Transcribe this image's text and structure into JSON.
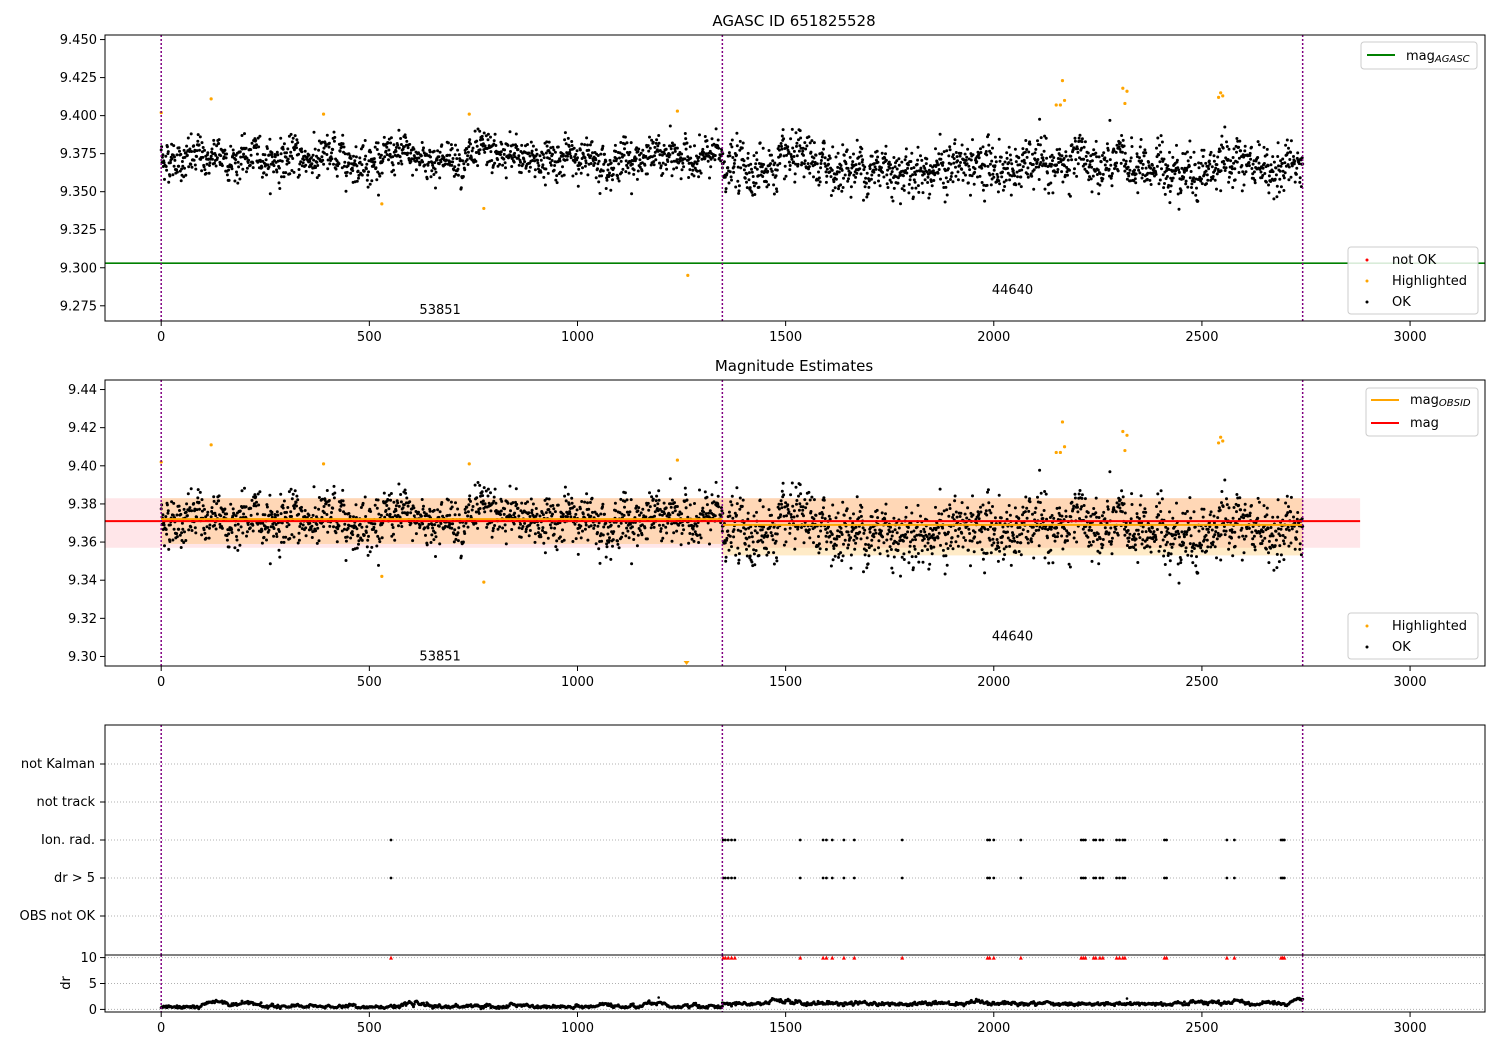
{
  "chart_data": [
    {
      "id": "agasc",
      "type": "scatter",
      "title": "AGASC ID 651825528",
      "xlim": [
        -135,
        3180
      ],
      "ylim": [
        9.265,
        9.453
      ],
      "xticks": [
        0,
        500,
        1000,
        1500,
        2000,
        2500,
        3000
      ],
      "yticks": [
        9.275,
        9.3,
        9.325,
        9.35,
        9.375,
        9.4,
        9.425,
        9.45
      ],
      "ytick_labels": [
        "9.275",
        "9.300",
        "9.325",
        "9.350",
        "9.375",
        "9.400",
        "9.425",
        "9.450"
      ],
      "obs_boundaries": [
        0,
        1348,
        2742
      ],
      "obs_labels": [
        {
          "text": "53851",
          "x": 670,
          "y": 9.273
        },
        {
          "text": "44640",
          "x": 2045,
          "y": 9.286
        }
      ],
      "series": [
        {
          "name": "not OK",
          "color": "#ff0000",
          "values": []
        },
        {
          "name": "Highlighted",
          "color": "#ffa500",
          "x": [
            0,
            120,
            390,
            530,
            740,
            775,
            1240,
            1265,
            2150,
            2160,
            2165,
            2170,
            2310,
            2315,
            2320,
            2540,
            2545,
            2550
          ],
          "y": [
            9.402,
            9.411,
            9.401,
            9.342,
            9.401,
            9.339,
            9.403,
            9.295,
            9.407,
            9.407,
            9.423,
            9.41,
            9.418,
            9.408,
            9.416,
            9.412,
            9.415,
            9.413
          ]
        },
        {
          "name": "OK",
          "color": "#000000",
          "segments": [
            {
              "x0": 0,
              "x1": 1348,
              "mean": 9.372,
              "std": 0.011
            },
            {
              "x0": 1348,
              "x1": 2742,
              "mean": 9.366,
              "std": 0.014
            }
          ]
        }
      ],
      "lines": [
        {
          "name": "mag_AGASC",
          "legend_main": "mag",
          "legend_sub": "AGASC",
          "y": 9.303,
          "color": "#008000"
        }
      ]
    },
    {
      "id": "mag-estimates",
      "type": "scatter",
      "title": "Magnitude Estimates",
      "xlim": [
        -135,
        3180
      ],
      "ylim": [
        9.295,
        9.445
      ],
      "xticks": [
        0,
        500,
        1000,
        1500,
        2000,
        2500,
        3000
      ],
      "yticks": [
        9.3,
        9.32,
        9.34,
        9.36,
        9.38,
        9.4,
        9.42,
        9.44
      ],
      "ytick_labels": [
        "9.30",
        "9.32",
        "9.34",
        "9.36",
        "9.38",
        "9.40",
        "9.42",
        "9.44"
      ],
      "obs_boundaries": [
        0,
        1348,
        2742
      ],
      "obs_labels": [
        {
          "text": "53851",
          "x": 670,
          "y": 9.3005
        },
        {
          "text": "44640",
          "x": 2045,
          "y": 9.311
        }
      ],
      "series": [
        {
          "name": "Highlighted",
          "color": "#ffa500",
          "x": [
            0,
            120,
            390,
            530,
            740,
            775,
            1240,
            2150,
            2160,
            2165,
            2170,
            2310,
            2315,
            2320,
            2540,
            2545,
            2550
          ],
          "y": [
            9.402,
            9.411,
            9.401,
            9.342,
            9.401,
            9.339,
            9.403,
            9.407,
            9.407,
            9.423,
            9.41,
            9.418,
            9.408,
            9.416,
            9.412,
            9.415,
            9.413
          ]
        },
        {
          "name": "OK",
          "color": "#000000",
          "segments": [
            {
              "x0": 0,
              "x1": 1348,
              "mean": 9.372,
              "std": 0.011
            },
            {
              "x0": 1348,
              "x1": 2742,
              "mean": 9.366,
              "std": 0.014
            }
          ]
        }
      ],
      "bands": [
        {
          "name": "mag band",
          "x0": -135,
          "x1": 2880,
          "y0": 9.357,
          "y1": 9.383,
          "color": "#ffb6c1",
          "opacity": 0.35
        },
        {
          "name": "obs 53851 band",
          "x0": 0,
          "x1": 1348,
          "y0": 9.359,
          "y1": 9.383,
          "color": "#ffa500",
          "opacity": 0.22
        },
        {
          "name": "obs 44640 band",
          "x0": 1348,
          "x1": 2742,
          "y0": 9.353,
          "y1": 9.383,
          "color": "#ffa500",
          "opacity": 0.22
        }
      ],
      "lines": [
        {
          "name": "mag_OBSID",
          "legend_main": "mag",
          "legend_sub": "OBSID",
          "color": "#ffa500",
          "segments": [
            {
              "x0": 0,
              "x1": 1348,
              "y": 9.372
            },
            {
              "x0": 1348,
              "x1": 2742,
              "y": 9.369
            }
          ]
        },
        {
          "name": "mag",
          "legend_main": "mag",
          "color": "#ff0000",
          "segments": [
            {
              "x0": -135,
              "x1": 2880,
              "y": 9.371
            }
          ]
        }
      ]
    },
    {
      "id": "flags",
      "type": "scatter",
      "xlim": [
        -135,
        3180
      ],
      "categories": [
        "not Kalman",
        "not track",
        "Ion. rad.",
        "dr > 5",
        "OBS not OK"
      ],
      "obs_boundaries": [
        0,
        1348,
        2742
      ],
      "flagged_x": [
        552,
        1350,
        1355,
        1362,
        1370,
        1378,
        1535,
        1590,
        1598,
        1612,
        1640,
        1665,
        1780,
        1985,
        1990,
        2000,
        2065,
        2210,
        2215,
        2220,
        2240,
        2245,
        2255,
        2262,
        2295,
        2302,
        2310,
        2315,
        2410,
        2415,
        2560,
        2578,
        2690,
        2694,
        2698
      ],
      "series": [
        {
          "name": "Ion. rad.",
          "color": "#000000",
          "uses": "flagged_x"
        },
        {
          "name": "dr > 5",
          "color": "#000000",
          "uses": "flagged_x"
        }
      ]
    },
    {
      "id": "dr",
      "type": "scatter",
      "xlim": [
        -135,
        3180
      ],
      "ylim": [
        -0.5,
        10.5
      ],
      "yticks": [
        0,
        5,
        10
      ],
      "ylabel": "dr",
      "xticks": [
        0,
        500,
        1000,
        1500,
        2000,
        2500,
        3000
      ],
      "obs_boundaries": [
        0,
        1348,
        2742
      ],
      "series": [
        {
          "name": "dr",
          "color": "#000000",
          "segments": [
            {
              "x0": 0,
              "x1": 1348,
              "mean": 0.35
            },
            {
              "x0": 1348,
              "x1": 2742,
              "mean": 0.9
            }
          ]
        },
        {
          "name": "dr clipped",
          "color": "#ff0000",
          "y": 10,
          "uses": "flagged_x"
        }
      ]
    }
  ],
  "colors": {
    "ok": "#000000",
    "highlighted": "#ffa500",
    "not_ok": "#ff0000",
    "agasc": "#008000",
    "boundary": "#800080",
    "mag": "#ff0000"
  }
}
